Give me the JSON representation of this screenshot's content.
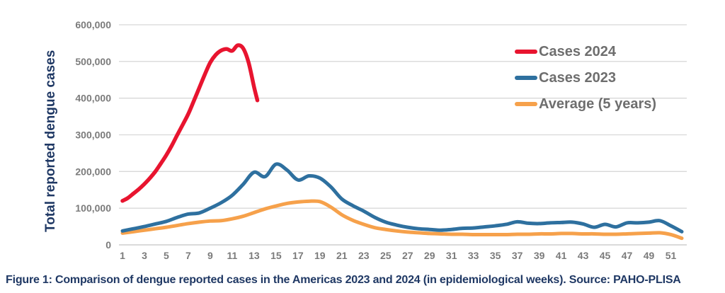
{
  "figure": {
    "caption": "Figure 1: Comparison of dengue reported cases in the Americas 2023 and 2024 (in epidemiological weeks). Source: PAHO-PLISA"
  },
  "legend": {
    "items": [
      {
        "label": "Cases 2024",
        "color": "#e8142f"
      },
      {
        "label": "Cases 2023",
        "color": "#2e709f"
      },
      {
        "label": "Average (5 years)",
        "color": "#f6a14b"
      }
    ]
  },
  "colors": {
    "grid": "#d8d8d8",
    "baseline": "#c4c4c4",
    "tick_text": "#7b7b7b",
    "navy": "#1f3864"
  },
  "chart_data": {
    "type": "line",
    "title": "",
    "xlabel": "",
    "ylabel": "Total reported dengue cases",
    "ylim": [
      0,
      600000
    ],
    "x_range": [
      1,
      52
    ],
    "grid": "horizontal-only",
    "legend_position": "top-right-inside",
    "y_ticks": [
      {
        "value": 0,
        "label": "0"
      },
      {
        "value": 100000,
        "label": "100,000"
      },
      {
        "value": 200000,
        "label": "200,000"
      },
      {
        "value": 300000,
        "label": "300,000"
      },
      {
        "value": 400000,
        "label": "400,000"
      },
      {
        "value": 500000,
        "label": "500,000"
      },
      {
        "value": 600000,
        "label": "600,000"
      }
    ],
    "x_tick_labels": [
      1,
      3,
      5,
      7,
      9,
      11,
      13,
      15,
      17,
      19,
      21,
      23,
      25,
      27,
      29,
      31,
      33,
      35,
      37,
      39,
      41,
      43,
      45,
      47,
      49,
      51
    ],
    "series": [
      {
        "name": "Cases 2024",
        "color": "#e8142f",
        "points": [
          [
            1,
            120000
          ],
          [
            1.5,
            128000
          ],
          [
            2,
            140000
          ],
          [
            2.5,
            152000
          ],
          [
            3,
            166000
          ],
          [
            3.5,
            182000
          ],
          [
            4,
            200000
          ],
          [
            4.5,
            222000
          ],
          [
            5,
            245000
          ],
          [
            5.5,
            271000
          ],
          [
            6,
            300000
          ],
          [
            6.5,
            328000
          ],
          [
            7,
            357000
          ],
          [
            7.5,
            392000
          ],
          [
            8,
            428000
          ],
          [
            8.5,
            464000
          ],
          [
            9,
            497000
          ],
          [
            9.5,
            518000
          ],
          [
            10,
            530000
          ],
          [
            10.5,
            534000
          ],
          [
            11,
            529000
          ],
          [
            11.5,
            544000
          ],
          [
            12,
            536000
          ],
          [
            12.5,
            497000
          ],
          [
            13,
            430000
          ],
          [
            13.3,
            394000
          ]
        ]
      },
      {
        "name": "Cases 2023",
        "color": "#2e709f",
        "x_start": 1,
        "x_step": 1,
        "values": [
          38000,
          44000,
          50000,
          57000,
          64000,
          75000,
          84000,
          87000,
          100000,
          115000,
          135000,
          165000,
          198000,
          186000,
          220000,
          204000,
          177000,
          188000,
          182000,
          158000,
          125000,
          107000,
          92000,
          75000,
          62000,
          54000,
          48000,
          44000,
          42000,
          40000,
          42000,
          45000,
          46000,
          49000,
          52000,
          56000,
          63000,
          59000,
          58000,
          60000,
          61000,
          62000,
          57000,
          48000,
          56000,
          49000,
          60000,
          60000,
          62000,
          66000,
          52000,
          36000
        ]
      },
      {
        "name": "Average (5 years)",
        "color": "#f6a14b",
        "x_start": 1,
        "x_step": 1,
        "values": [
          32000,
          36000,
          40000,
          44000,
          48000,
          53000,
          58000,
          62000,
          65000,
          66000,
          71000,
          78000,
          88000,
          98000,
          106000,
          113000,
          117000,
          119000,
          118000,
          103000,
          82000,
          67000,
          56000,
          47000,
          42000,
          38000,
          35000,
          33000,
          31000,
          30000,
          29000,
          29000,
          28000,
          28000,
          28000,
          28000,
          29000,
          29000,
          30000,
          30000,
          31000,
          31000,
          30000,
          30000,
          29000,
          29000,
          30000,
          31000,
          32000,
          33000,
          28000,
          18000
        ]
      }
    ]
  }
}
